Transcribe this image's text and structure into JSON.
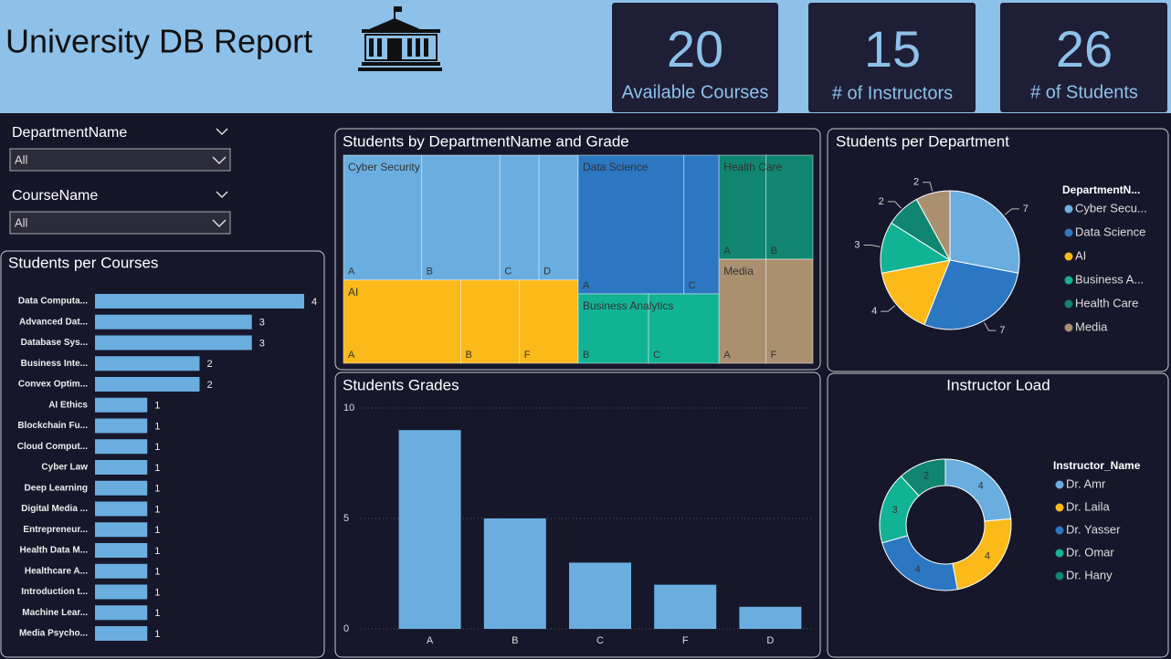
{
  "header": {
    "title": "University DB Report"
  },
  "cards": [
    {
      "value": 20,
      "label": "Available Courses"
    },
    {
      "value": 15,
      "label": "# of Instructors"
    },
    {
      "value": 26,
      "label": "# of Students"
    }
  ],
  "filters": [
    {
      "label": "DepartmentName",
      "value": "All"
    },
    {
      "label": "CourseName",
      "value": "All"
    }
  ],
  "chart_data": [
    {
      "type": "bar",
      "orientation": "horizontal",
      "title": "Students per Courses",
      "color": "#6aaee0",
      "categories": [
        "Data Computa...",
        "Advanced Dat...",
        "Database Sys...",
        "Business Inte...",
        "Convex Optim...",
        "AI Ethics",
        "Blockchain Fu...",
        "Cloud Comput...",
        "Cyber Law",
        "Deep Learning",
        "Digital Media ...",
        "Entrepreneur...",
        "Health Data M...",
        "Healthcare A...",
        "Introduction t...",
        "Machine Lear...",
        "Media Psycho..."
      ],
      "values": [
        4,
        3,
        3,
        2,
        2,
        1,
        1,
        1,
        1,
        1,
        1,
        1,
        1,
        1,
        1,
        1,
        1
      ]
    },
    {
      "type": "treemap",
      "title": "Students by DepartmentName and Grade",
      "groups": [
        {
          "name": "Cyber Security",
          "color": "#6aaee0",
          "children": [
            {
              "name": "A",
              "value": 2
            },
            {
              "name": "B",
              "value": 2
            },
            {
              "name": "C",
              "value": 1
            },
            {
              "name": "D",
              "value": 1
            }
          ]
        },
        {
          "name": "AI",
          "color": "#fbb91a",
          "children": [
            {
              "name": "A",
              "value": 2
            },
            {
              "name": "B",
              "value": 1
            },
            {
              "name": "F",
              "value": 1
            }
          ]
        },
        {
          "name": "Data Science",
          "color": "#2b77c2",
          "children": [
            {
              "name": "A",
              "value": 3
            },
            {
              "name": "C",
              "value": 1
            }
          ]
        },
        {
          "name": "Business Analytics",
          "color": "#12b394",
          "children": [
            {
              "name": "B",
              "value": 1
            },
            {
              "name": "C",
              "value": 1
            }
          ]
        },
        {
          "name": "Health Care",
          "color": "#108570",
          "children": [
            {
              "name": "A",
              "value": 1
            },
            {
              "name": "B",
              "value": 1
            }
          ]
        },
        {
          "name": "Media",
          "color": "#ab9070",
          "children": [
            {
              "name": "A",
              "value": 1
            },
            {
              "name": "F",
              "value": 1
            }
          ]
        }
      ]
    },
    {
      "type": "bar",
      "orientation": "vertical",
      "title": "Students Grades",
      "color": "#6aaee0",
      "categories": [
        "A",
        "B",
        "C",
        "F",
        "D"
      ],
      "values": [
        9,
        5,
        3,
        2,
        1
      ],
      "ylim": [
        0,
        10
      ],
      "yticks": [
        0,
        5,
        10
      ],
      "grid": true
    },
    {
      "type": "pie",
      "title": "Students per Department",
      "legend_title": "DepartmentN...",
      "categories": [
        "Cyber Secu...",
        "Data Science",
        "AI",
        "Business A...",
        "Health Care",
        "Media"
      ],
      "values": [
        7,
        7,
        4,
        3,
        2,
        2
      ],
      "colors": [
        "#6aaee0",
        "#2b77c2",
        "#fbb91a",
        "#12b394",
        "#108570",
        "#ab9070"
      ]
    },
    {
      "type": "donut",
      "title": "Instructor Load",
      "legend_title": "Instructor_Name",
      "categories": [
        "Dr. Amr",
        "Dr. Laila",
        "Dr. Yasser",
        "Dr. Omar",
        "Dr. Hany"
      ],
      "values": [
        4,
        4,
        4,
        3,
        2
      ],
      "colors": [
        "#6aaee0",
        "#fbb91a",
        "#2b77c2",
        "#12b394",
        "#108570"
      ]
    }
  ]
}
